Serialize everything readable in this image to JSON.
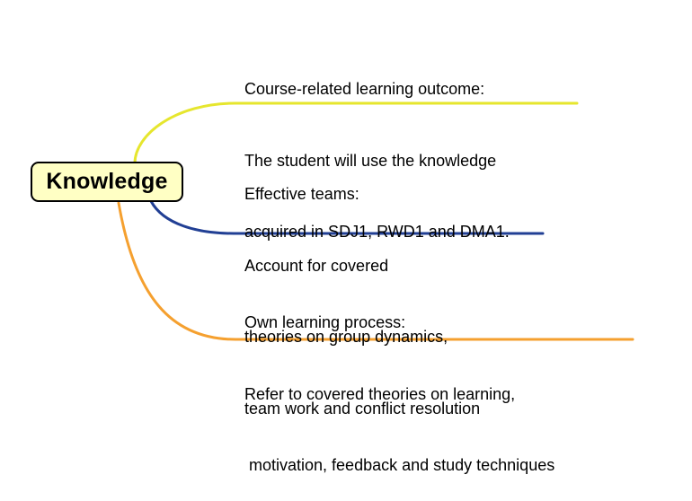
{
  "central_topic": {
    "label": "Knowledge",
    "fill_color": "#ffffc4",
    "border_color": "#000000"
  },
  "branches": [
    {
      "color": "#e6e62e",
      "lines": [
        "Course-related learning outcome:",
        "The student will use the knowledge",
        "acquired in SDJ1, RWD1 and DMA1."
      ]
    },
    {
      "color": "#213f94",
      "lines": [
        "Effective teams:",
        "Account for covered",
        "theories on group dynamics,",
        "team work and conflict resolution"
      ]
    },
    {
      "color": "#f5a02f",
      "lines": [
        "Own learning process:",
        "Refer to covered theories on learning,",
        " motivation, feedback and study techniques"
      ]
    }
  ]
}
